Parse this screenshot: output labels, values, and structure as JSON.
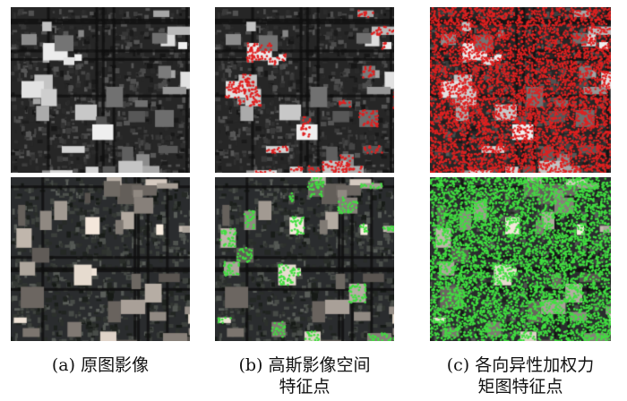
{
  "figure": {
    "panels": [
      {
        "column": "a",
        "row": "top",
        "overlay": "none",
        "scene": "grayscale"
      },
      {
        "column": "a",
        "row": "bottom",
        "overlay": "none",
        "scene": "color"
      },
      {
        "column": "b",
        "row": "top",
        "overlay": "sparse-points",
        "point_color": "#e02020",
        "scene": "grayscale"
      },
      {
        "column": "b",
        "row": "bottom",
        "overlay": "sparse-points",
        "point_color": "#40e040",
        "scene": "color"
      },
      {
        "column": "c",
        "row": "top",
        "overlay": "dense-points",
        "point_color": "#e02020",
        "scene": "grayscale"
      },
      {
        "column": "c",
        "row": "bottom",
        "overlay": "dense-points",
        "point_color": "#40e040",
        "scene": "color"
      }
    ],
    "captions": {
      "a": {
        "line1": "(a) 原图影像",
        "line2": ""
      },
      "b": {
        "line1": "(b) 高斯影像空间",
        "line2": "特征点"
      },
      "c": {
        "line1": "(c) 各向异性加权力",
        "line2": "矩图特征点"
      }
    }
  }
}
